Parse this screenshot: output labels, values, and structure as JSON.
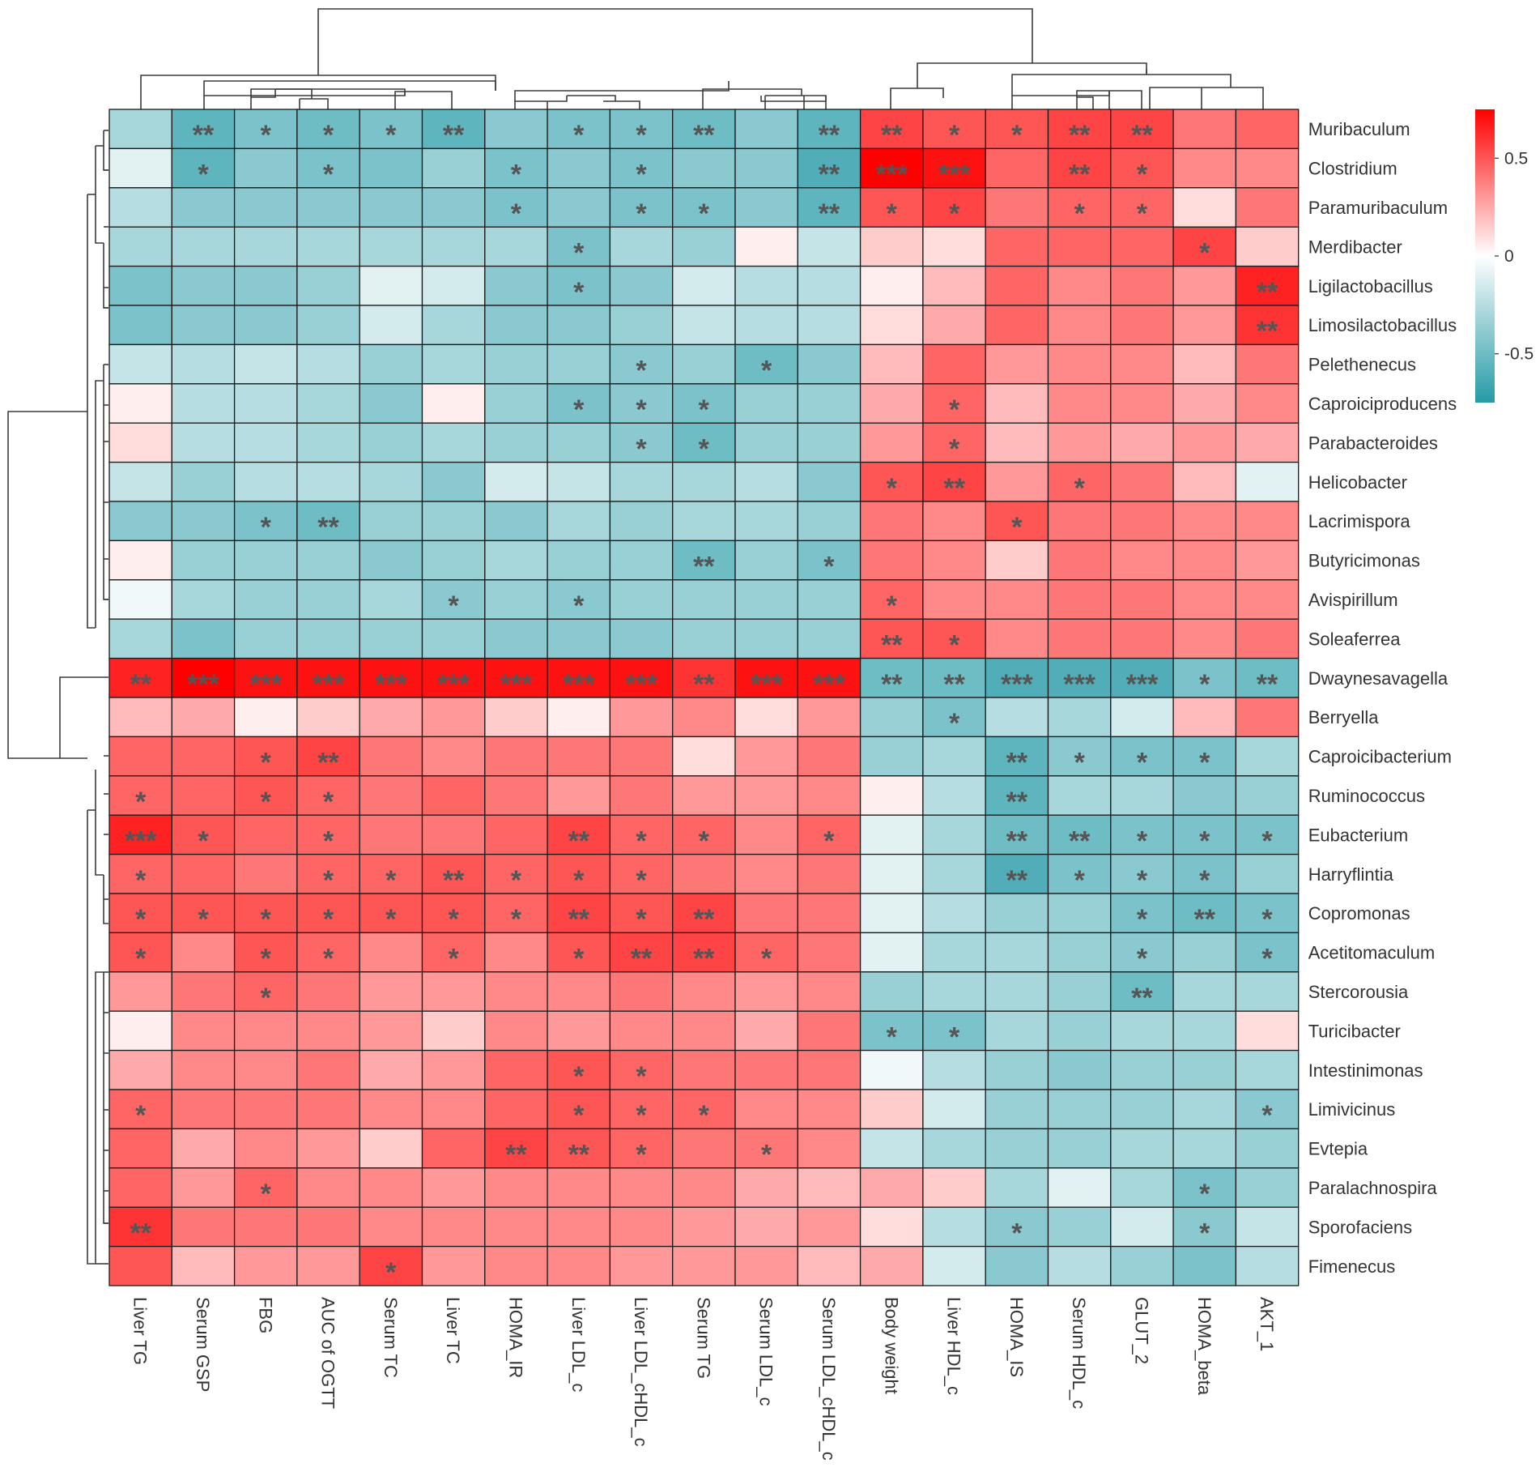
{
  "chart_data": {
    "type": "heatmap",
    "title": "",
    "rows": [
      "Muribaculum",
      "Clostridium",
      "Paramuribaculum",
      "Merdibacter",
      "Ligilactobacillus",
      "Limosilactobacillus",
      "Pelethenecus",
      "Caproiciproducens",
      "Parabacteroides",
      "Helicobacter",
      "Lacrimispora",
      "Butyricimonas",
      "Avispirillum",
      "Soleaferrea",
      "Dwaynesavagella",
      "Berryella",
      "Caproicibacterium",
      "Ruminococcus",
      "Eubacterium",
      "Harryflintia",
      "Copromonas",
      "Acetitomaculum",
      "Stercorousia",
      "Turicibacter",
      "Intestinimonas",
      "Limivicinus",
      "Evtepia",
      "Paralachnospira",
      "Sporofaciens",
      "Fimenecus"
    ],
    "columns": [
      "Liver TG",
      "Serum GSP",
      "FBG",
      "AUC of OGTT",
      "Serum TC",
      "Liver TC",
      "HOMA_IR",
      "Liver LDL_c",
      "Liver LDL_cHDL_c",
      "Serum TG",
      "Serum LDL_c",
      "Serum LDL_cHDL_c",
      "Body weight",
      "Liver HDL_c",
      "HOMA_IS",
      "Serum HDL_c",
      "GLUT_2",
      "HOMA_beta",
      "AKT_1"
    ],
    "values": [
      [
        -0.3,
        -0.55,
        -0.45,
        -0.5,
        -0.45,
        -0.55,
        -0.4,
        -0.45,
        -0.45,
        -0.5,
        -0.4,
        -0.55,
        0.55,
        0.5,
        0.5,
        0.55,
        0.55,
        0.4,
        0.45
      ],
      [
        -0.1,
        -0.55,
        -0.4,
        -0.45,
        -0.45,
        -0.35,
        -0.45,
        -0.4,
        -0.45,
        -0.4,
        -0.4,
        -0.6,
        0.75,
        0.7,
        0.45,
        0.55,
        0.5,
        0.35,
        0.35
      ],
      [
        -0.25,
        -0.4,
        -0.4,
        -0.4,
        -0.4,
        -0.4,
        -0.45,
        -0.4,
        -0.45,
        -0.45,
        -0.4,
        -0.55,
        0.5,
        0.55,
        0.4,
        0.45,
        0.45,
        0.1,
        0.4
      ],
      [
        -0.3,
        -0.3,
        -0.3,
        -0.3,
        -0.3,
        -0.3,
        -0.3,
        -0.45,
        -0.3,
        -0.35,
        0.05,
        -0.2,
        0.15,
        0.1,
        0.45,
        0.45,
        0.45,
        0.55,
        0.15
      ],
      [
        -0.45,
        -0.4,
        -0.4,
        -0.35,
        -0.1,
        -0.15,
        -0.4,
        -0.45,
        -0.4,
        -0.15,
        -0.25,
        -0.25,
        0.05,
        0.2,
        0.45,
        0.35,
        0.4,
        0.3,
        0.65
      ],
      [
        -0.45,
        -0.4,
        -0.4,
        -0.35,
        -0.15,
        -0.3,
        -0.4,
        -0.4,
        -0.35,
        -0.2,
        -0.25,
        -0.25,
        0.1,
        0.25,
        0.45,
        0.35,
        0.4,
        0.3,
        0.6
      ],
      [
        -0.2,
        -0.25,
        -0.2,
        -0.25,
        -0.35,
        -0.3,
        -0.35,
        -0.35,
        -0.4,
        -0.35,
        -0.5,
        -0.4,
        0.2,
        0.45,
        0.3,
        0.35,
        0.35,
        0.2,
        0.4
      ],
      [
        0.05,
        -0.25,
        -0.25,
        -0.3,
        -0.4,
        0.05,
        -0.35,
        -0.45,
        -0.4,
        -0.45,
        -0.35,
        -0.35,
        0.25,
        0.45,
        0.2,
        0.35,
        0.35,
        0.25,
        0.35
      ],
      [
        0.1,
        -0.25,
        -0.25,
        -0.3,
        -0.35,
        -0.3,
        -0.35,
        -0.35,
        -0.4,
        -0.5,
        -0.35,
        -0.35,
        0.3,
        0.45,
        0.2,
        0.3,
        0.25,
        0.3,
        0.25
      ],
      [
        -0.2,
        -0.35,
        -0.25,
        -0.25,
        -0.3,
        -0.4,
        -0.15,
        -0.2,
        -0.3,
        -0.3,
        -0.25,
        -0.4,
        0.5,
        0.55,
        0.3,
        0.45,
        0.4,
        0.2,
        -0.1
      ],
      [
        -0.4,
        -0.4,
        -0.45,
        -0.5,
        -0.35,
        -0.35,
        -0.4,
        -0.3,
        -0.35,
        -0.3,
        -0.3,
        -0.35,
        0.4,
        0.35,
        0.5,
        0.4,
        0.4,
        0.35,
        0.35
      ],
      [
        0.05,
        -0.35,
        -0.35,
        -0.35,
        -0.4,
        -0.35,
        -0.3,
        -0.35,
        -0.35,
        -0.5,
        -0.35,
        -0.45,
        0.4,
        0.35,
        0.15,
        0.4,
        0.35,
        0.35,
        0.3
      ],
      [
        -0.05,
        -0.3,
        -0.35,
        -0.35,
        -0.3,
        -0.4,
        -0.35,
        -0.4,
        -0.35,
        -0.35,
        -0.35,
        -0.35,
        0.45,
        0.35,
        0.35,
        0.4,
        0.4,
        0.35,
        0.35
      ],
      [
        -0.3,
        -0.45,
        -0.35,
        -0.35,
        -0.35,
        -0.35,
        -0.4,
        -0.4,
        -0.4,
        -0.35,
        -0.35,
        -0.35,
        0.5,
        0.5,
        0.35,
        0.4,
        0.4,
        0.35,
        0.4
      ],
      [
        0.65,
        0.75,
        0.7,
        0.7,
        0.7,
        0.7,
        0.7,
        0.7,
        0.7,
        0.6,
        0.7,
        0.7,
        -0.5,
        -0.5,
        -0.6,
        -0.6,
        -0.6,
        -0.45,
        -0.5
      ],
      [
        0.2,
        0.25,
        0.05,
        0.15,
        0.25,
        0.3,
        0.15,
        0.05,
        0.3,
        0.35,
        0.1,
        0.3,
        -0.35,
        -0.45,
        -0.25,
        -0.3,
        -0.15,
        0.2,
        0.4
      ],
      [
        0.45,
        0.45,
        0.5,
        0.55,
        0.4,
        0.35,
        0.4,
        0.4,
        0.4,
        0.1,
        0.3,
        0.4,
        -0.35,
        -0.3,
        -0.55,
        -0.4,
        -0.45,
        -0.45,
        -0.3
      ],
      [
        0.45,
        0.45,
        0.5,
        0.45,
        0.4,
        0.45,
        0.4,
        0.3,
        0.4,
        0.3,
        0.3,
        0.35,
        0.05,
        -0.25,
        -0.55,
        -0.3,
        -0.3,
        -0.4,
        -0.35
      ],
      [
        0.65,
        0.5,
        0.45,
        0.45,
        0.4,
        0.4,
        0.45,
        0.55,
        0.45,
        0.45,
        0.35,
        0.45,
        -0.1,
        -0.3,
        -0.5,
        -0.5,
        -0.45,
        -0.45,
        -0.45
      ],
      [
        0.45,
        0.45,
        0.4,
        0.45,
        0.45,
        0.5,
        0.45,
        0.5,
        0.45,
        0.4,
        0.35,
        0.4,
        -0.1,
        -0.3,
        -0.6,
        -0.45,
        -0.4,
        -0.45,
        -0.35
      ],
      [
        0.5,
        0.5,
        0.5,
        0.5,
        0.5,
        0.5,
        0.45,
        0.55,
        0.5,
        0.55,
        0.4,
        0.4,
        -0.1,
        -0.25,
        -0.35,
        -0.35,
        -0.45,
        -0.5,
        -0.45
      ],
      [
        0.5,
        0.35,
        0.5,
        0.45,
        0.35,
        0.45,
        0.35,
        0.5,
        0.55,
        0.55,
        0.45,
        0.4,
        -0.1,
        -0.3,
        -0.3,
        -0.35,
        -0.4,
        -0.35,
        -0.45
      ],
      [
        0.3,
        0.4,
        0.45,
        0.4,
        0.3,
        0.3,
        0.35,
        0.35,
        0.4,
        0.35,
        0.3,
        0.35,
        -0.35,
        -0.3,
        -0.3,
        -0.35,
        -0.5,
        -0.3,
        -0.3
      ],
      [
        0.05,
        0.35,
        0.35,
        0.35,
        0.3,
        0.15,
        0.35,
        0.3,
        0.35,
        0.35,
        0.25,
        0.4,
        -0.45,
        -0.45,
        -0.3,
        -0.35,
        -0.3,
        -0.3,
        0.1
      ],
      [
        0.25,
        0.35,
        0.35,
        0.4,
        0.25,
        0.3,
        0.45,
        0.5,
        0.45,
        0.4,
        0.4,
        0.4,
        -0.05,
        -0.25,
        -0.35,
        -0.4,
        -0.35,
        -0.35,
        -0.3
      ],
      [
        0.45,
        0.4,
        0.4,
        0.4,
        0.35,
        0.35,
        0.45,
        0.5,
        0.45,
        0.45,
        0.35,
        0.35,
        0.15,
        -0.15,
        -0.35,
        -0.35,
        -0.35,
        -0.3,
        -0.4
      ],
      [
        0.45,
        0.25,
        0.35,
        0.3,
        0.15,
        0.45,
        0.55,
        0.5,
        0.45,
        0.4,
        0.4,
        0.35,
        -0.2,
        -0.3,
        -0.35,
        -0.35,
        -0.3,
        -0.3,
        -0.35
      ],
      [
        0.45,
        0.3,
        0.45,
        0.35,
        0.35,
        0.3,
        0.35,
        0.35,
        0.35,
        0.35,
        0.25,
        0.2,
        0.25,
        0.15,
        -0.3,
        -0.1,
        -0.3,
        -0.45,
        -0.35
      ],
      [
        0.6,
        0.4,
        0.4,
        0.4,
        0.35,
        0.35,
        0.35,
        0.35,
        0.35,
        0.3,
        0.25,
        0.3,
        0.1,
        -0.25,
        -0.4,
        -0.35,
        -0.15,
        -0.4,
        -0.2
      ],
      [
        0.5,
        0.2,
        0.3,
        0.3,
        0.55,
        0.3,
        0.35,
        0.35,
        0.3,
        0.3,
        0.3,
        0.2,
        0.25,
        -0.15,
        -0.4,
        -0.25,
        -0.35,
        -0.45,
        -0.25
      ]
    ],
    "significance": [
      [
        "",
        "**",
        "*",
        "*",
        "*",
        "**",
        "",
        "*",
        "*",
        "**",
        "",
        "**",
        "**",
        "*",
        "*",
        "**",
        "**",
        "",
        ""
      ],
      [
        "",
        "*",
        "",
        "*",
        "",
        "",
        "*",
        "",
        "*",
        "",
        "",
        "**",
        "***",
        "***",
        "",
        "**",
        "*",
        "",
        ""
      ],
      [
        "",
        "",
        "",
        "",
        "",
        "",
        "*",
        "",
        "*",
        "*",
        "",
        "**",
        "*",
        "*",
        "",
        "*",
        "*",
        "",
        ""
      ],
      [
        "",
        "",
        "",
        "",
        "",
        "",
        "",
        "*",
        "",
        "",
        "",
        "",
        "",
        "",
        "",
        "",
        "",
        "*",
        ""
      ],
      [
        "",
        "",
        "",
        "",
        "",
        "",
        "",
        "*",
        "",
        "",
        "",
        "",
        "",
        "",
        "",
        "",
        "",
        "",
        "**"
      ],
      [
        "",
        "",
        "",
        "",
        "",
        "",
        "",
        "",
        "",
        "",
        "",
        "",
        "",
        "",
        "",
        "",
        "",
        "",
        "**"
      ],
      [
        "",
        "",
        "",
        "",
        "",
        "",
        "",
        "",
        "*",
        "",
        "*",
        "",
        "",
        "",
        "",
        "",
        "",
        "",
        ""
      ],
      [
        "",
        "",
        "",
        "",
        "",
        "",
        "",
        "*",
        "*",
        "*",
        "",
        "",
        "",
        "*",
        "",
        "",
        "",
        "",
        ""
      ],
      [
        "",
        "",
        "",
        "",
        "",
        "",
        "",
        "",
        "*",
        "*",
        "",
        "",
        "",
        "*",
        "",
        "",
        "",
        "",
        ""
      ],
      [
        "",
        "",
        "",
        "",
        "",
        "",
        "",
        "",
        "",
        "",
        "",
        "",
        "*",
        "**",
        "",
        "*",
        "",
        "",
        ""
      ],
      [
        "",
        "",
        "*",
        "**",
        "",
        "",
        "",
        "",
        "",
        "",
        "",
        "",
        "",
        "",
        "*",
        "",
        "",
        "",
        ""
      ],
      [
        "",
        "",
        "",
        "",
        "",
        "",
        "",
        "",
        "",
        "**",
        "",
        "*",
        "",
        "",
        "",
        "",
        "",
        "",
        ""
      ],
      [
        "",
        "",
        "",
        "",
        "",
        "*",
        "",
        "*",
        "",
        "",
        "",
        "",
        "*",
        "",
        "",
        "",
        "",
        "",
        ""
      ],
      [
        "",
        "",
        "",
        "",
        "",
        "",
        "",
        "",
        "",
        "",
        "",
        "",
        "**",
        "*",
        "",
        "",
        "",
        "",
        ""
      ],
      [
        "**",
        "***",
        "***",
        "***",
        "***",
        "***",
        "***",
        "***",
        "***",
        "**",
        "***",
        "***",
        "**",
        "**",
        "***",
        "***",
        "***",
        "*",
        "**"
      ],
      [
        "",
        "",
        "",
        "",
        "",
        "",
        "",
        "",
        "",
        "",
        "",
        "",
        "",
        "*",
        "",
        "",
        "",
        "",
        ""
      ],
      [
        "",
        "",
        "*",
        "**",
        "",
        "",
        "",
        "",
        "",
        "",
        "",
        "",
        "",
        "",
        "**",
        "*",
        "*",
        "*",
        ""
      ],
      [
        "*",
        "",
        "*",
        "*",
        "",
        "",
        "",
        "",
        "",
        "",
        "",
        "",
        "",
        "",
        "**",
        "",
        "",
        "",
        ""
      ],
      [
        "***",
        "*",
        "",
        "*",
        "",
        "",
        "",
        "**",
        "*",
        "*",
        "",
        "*",
        "",
        "",
        "**",
        "**",
        "*",
        "*",
        "*"
      ],
      [
        "*",
        "",
        "",
        "*",
        "*",
        "**",
        "*",
        "*",
        "*",
        "",
        "",
        "",
        "",
        "",
        "**",
        "*",
        "*",
        "*",
        ""
      ],
      [
        "*",
        "*",
        "*",
        "*",
        "*",
        "*",
        "*",
        "**",
        "*",
        "**",
        "",
        "",
        "",
        "",
        "",
        "",
        "*",
        "**",
        "*"
      ],
      [
        "*",
        "",
        "*",
        "*",
        "",
        "*",
        "",
        "*",
        "**",
        "**",
        "*",
        "",
        "",
        "",
        "",
        "",
        "*",
        "",
        "*"
      ],
      [
        "",
        "",
        "*",
        "",
        "",
        "",
        "",
        "",
        "",
        "",
        "",
        "",
        "",
        "",
        "",
        "",
        "**",
        "",
        ""
      ],
      [
        "",
        "",
        "",
        "",
        "",
        "",
        "",
        "",
        "",
        "",
        "",
        "",
        "*",
        "*",
        "",
        "",
        "",
        "",
        ""
      ],
      [
        "",
        "",
        "",
        "",
        "",
        "",
        "",
        "*",
        "*",
        "",
        "",
        "",
        "",
        "",
        "",
        "",
        "",
        "",
        ""
      ],
      [
        "*",
        "",
        "",
        "",
        "",
        "",
        "",
        "*",
        "*",
        "*",
        "",
        "",
        "",
        "",
        "",
        "",
        "",
        "",
        "*"
      ],
      [
        "",
        "",
        "",
        "",
        "",
        "",
        "**",
        "**",
        "*",
        "",
        "*",
        "",
        "",
        "",
        "",
        "",
        "",
        "",
        ""
      ],
      [
        "",
        "",
        "*",
        "",
        "",
        "",
        "",
        "",
        "",
        "",
        "",
        "",
        "",
        "",
        "",
        "",
        "",
        "*",
        ""
      ],
      [
        "**",
        "",
        "",
        "",
        "",
        "",
        "",
        "",
        "",
        "",
        "",
        "",
        "",
        "",
        "*",
        "",
        "",
        "*",
        ""
      ],
      [
        "",
        "",
        "",
        "",
        "*",
        "",
        "",
        "",
        "",
        "",
        "",
        "",
        "",
        "",
        "",
        "",
        "",
        "",
        ""
      ]
    ],
    "legend": {
      "ticks": [
        {
          "value": 0.5,
          "label": "0.5"
        },
        {
          "value": 0,
          "label": "0"
        },
        {
          "value": -0.5,
          "label": "-0.5"
        }
      ],
      "min": -0.75,
      "max": 0.75,
      "colors": {
        "low": "#259aa6",
        "mid": "#ffffff",
        "high": "#fe0000"
      },
      "placement": "top-right"
    }
  }
}
